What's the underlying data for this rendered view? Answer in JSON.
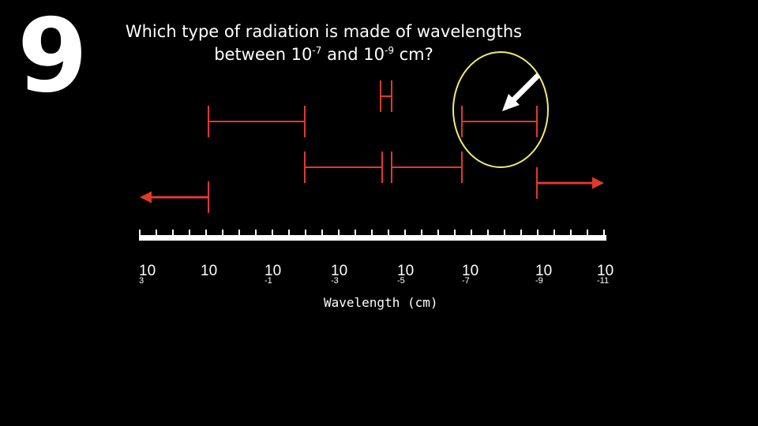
{
  "slide": {
    "number": "9",
    "question_line1": "Which type of radiation is made of wavelengths",
    "question_line2_prefix": "between 10",
    "question_exp1": "-7",
    "question_mid": " and 10",
    "question_exp2": "-9",
    "question_suffix": " cm?"
  },
  "axis": {
    "label": "Wavelength (cm)",
    "ticks": [
      {
        "base": "10",
        "exp": "3"
      },
      {
        "base": "10",
        "exp": ""
      },
      {
        "base": "10",
        "exp": "-1"
      },
      {
        "base": "10",
        "exp": "-3"
      },
      {
        "base": "10",
        "exp": "-5"
      },
      {
        "base": "10",
        "exp": "-7"
      },
      {
        "base": "10",
        "exp": "-9"
      },
      {
        "base": "10",
        "exp": "-11"
      }
    ]
  },
  "colors": {
    "background": "#000000",
    "text": "#ffffff",
    "range_bar": "#e03a2a",
    "highlight_circle": "#f2ec6e",
    "pointer_arrow": "#ffffff"
  }
}
